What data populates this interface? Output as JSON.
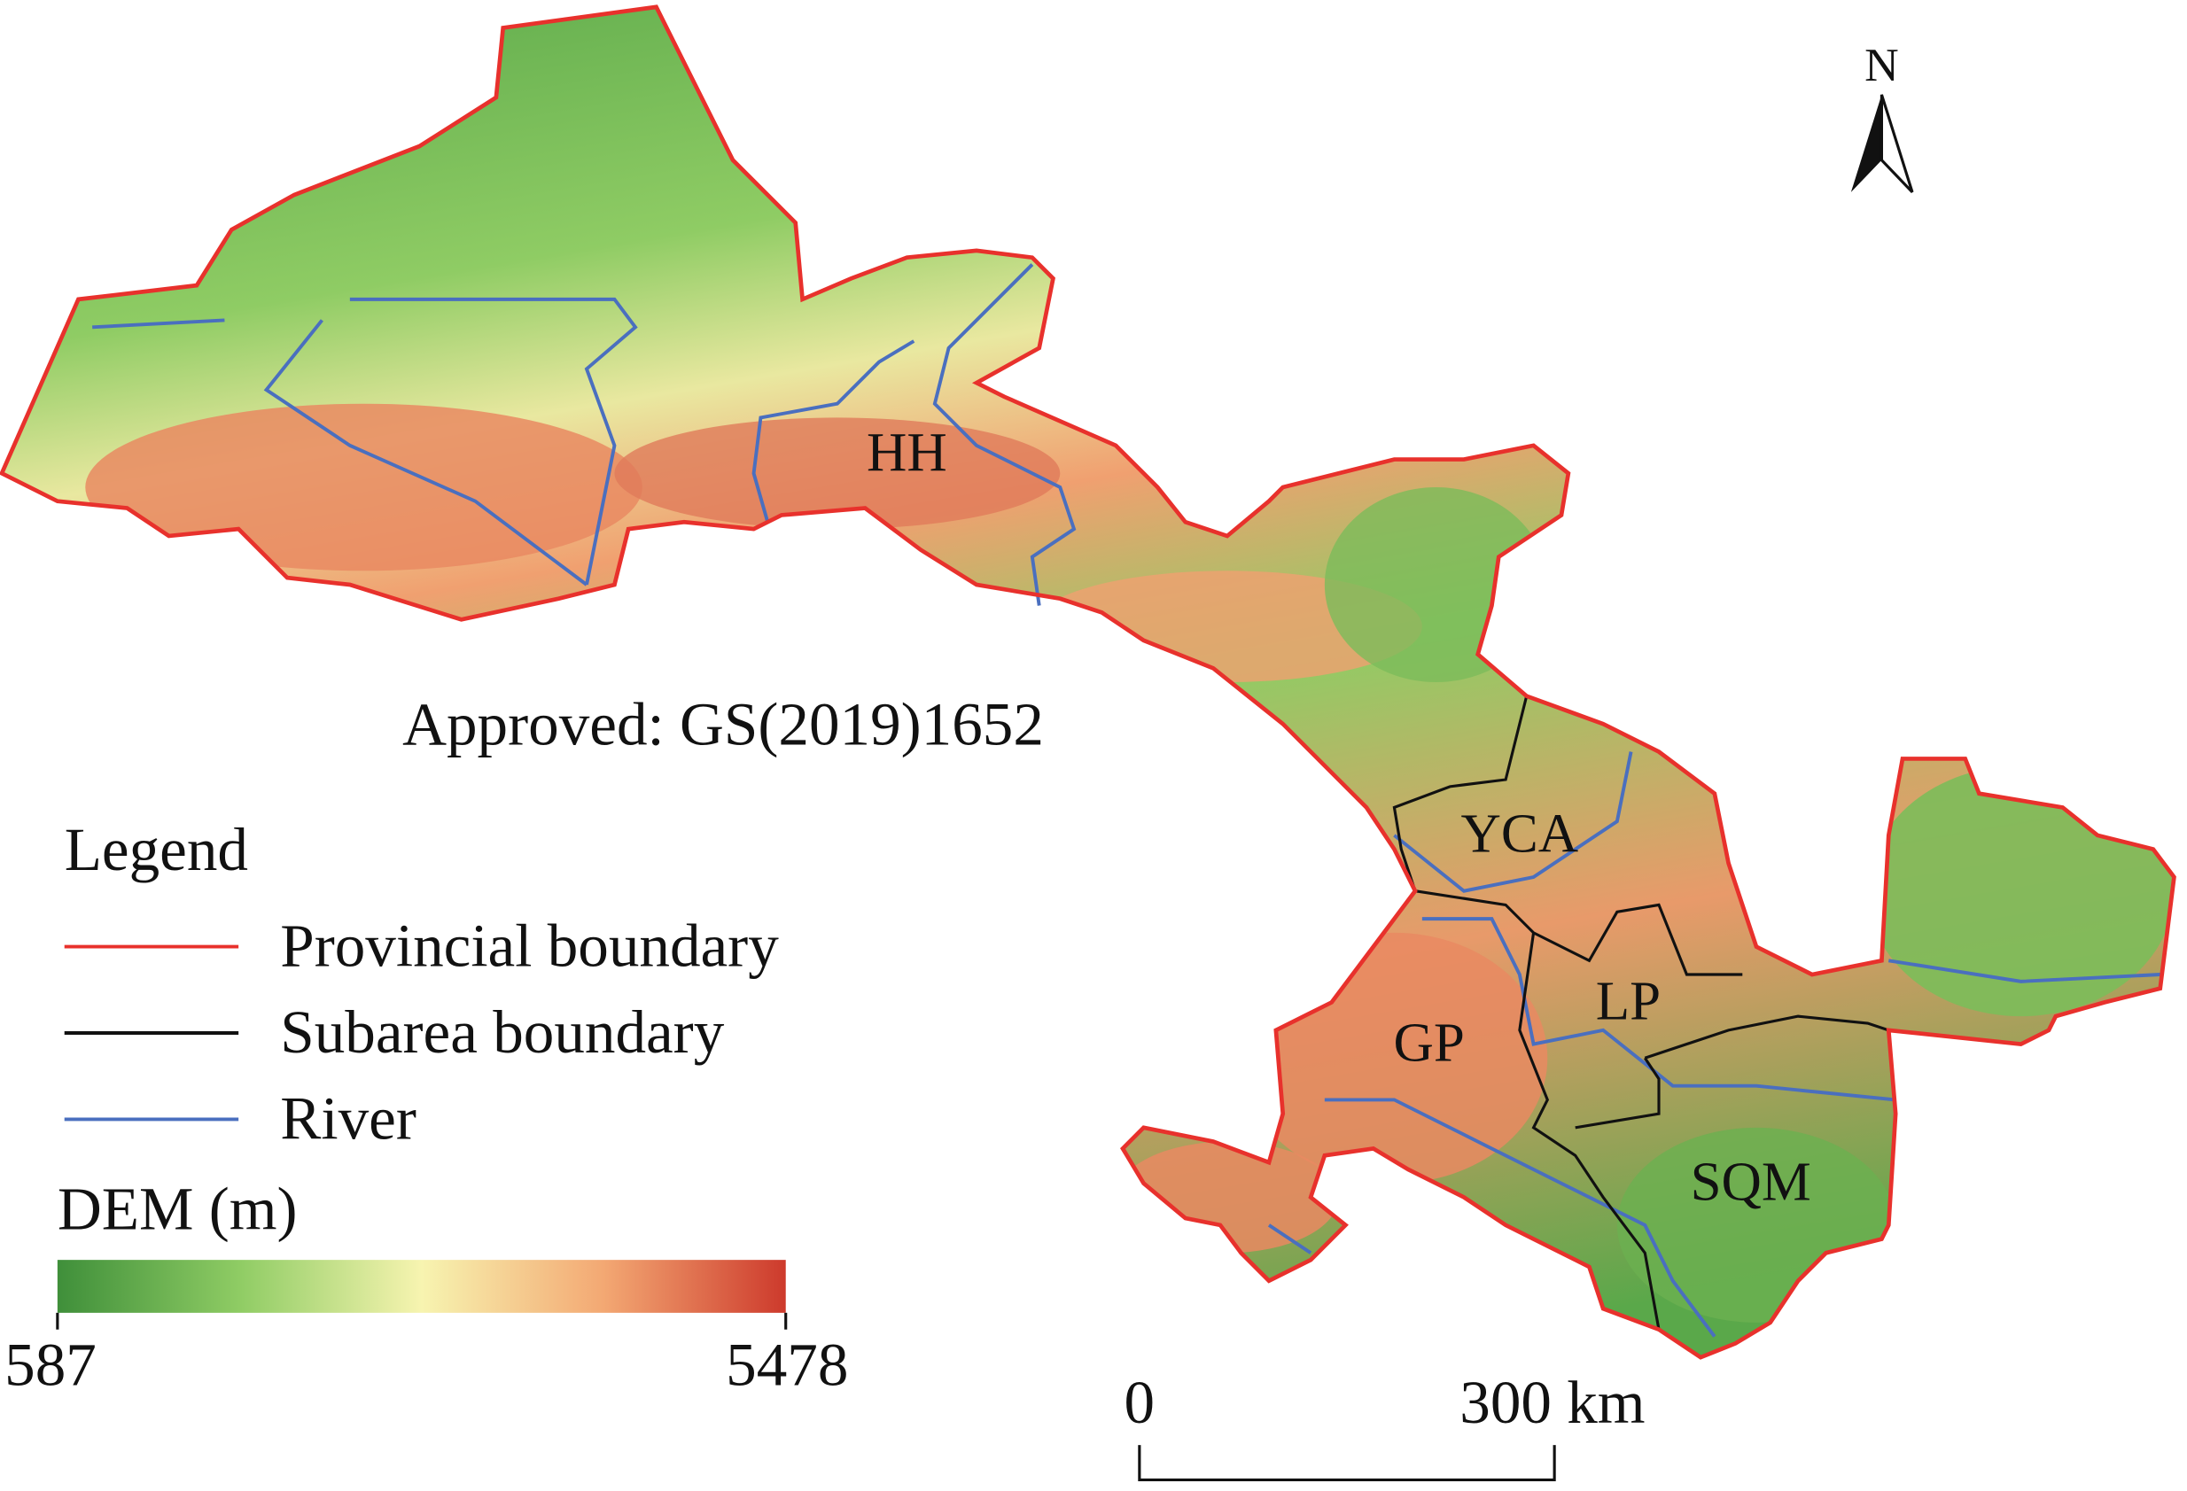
{
  "note": "Approved: GS(2019)1652",
  "north": "N",
  "regions": [
    {
      "label": "HH"
    },
    {
      "label": "YCA"
    },
    {
      "label": "LP"
    },
    {
      "label": "GP"
    },
    {
      "label": "SQM"
    }
  ],
  "legend": {
    "title": "Legend",
    "items": [
      {
        "label": "Provincial boundary",
        "color": "#e8312c"
      },
      {
        "label": "Subarea boundary",
        "color": "#111111"
      },
      {
        "label": "River",
        "color": "#4a6fbf"
      }
    ]
  },
  "colorbar": {
    "title": "DEM (m)",
    "min": 587,
    "max": 5478,
    "colors": [
      "#3f8f3a",
      "#8fcc64",
      "#f7f4b0",
      "#f3a873",
      "#cd3a2c"
    ]
  },
  "scale_bar": {
    "ticks": [
      0,
      {
        "value": 300,
        "label": "300 km"
      }
    ]
  }
}
